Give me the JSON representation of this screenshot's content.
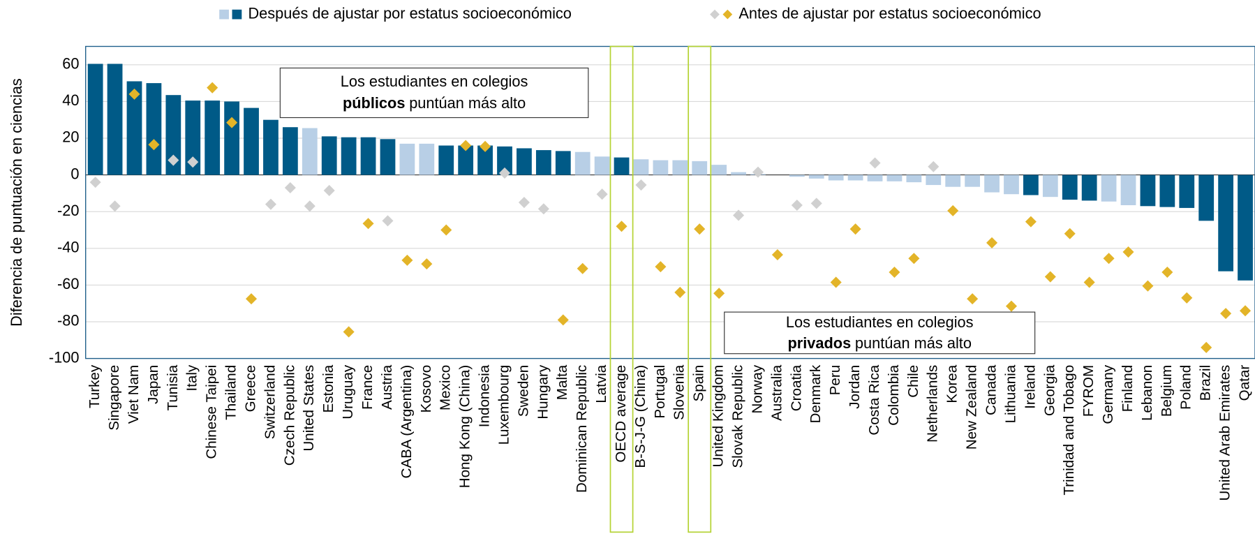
{
  "chart_data": {
    "type": "bar",
    "y_label": "Diferencia de puntuación en ciencias",
    "categories": [
      "Turkey",
      "Singapore",
      "Viet Nam",
      "Japan",
      "Tunisia",
      "Italy",
      "Chinese Taipei",
      "Thailand",
      "Greece",
      "Switzerland",
      "Czech Republic",
      "United States",
      "Estonia",
      "Uruguay",
      "France",
      "Austria",
      "CABA (Argentina)",
      "Kosovo",
      "Mexico",
      "Hong Kong (China)",
      "Indonesia",
      "Luxembourg",
      "Sweden",
      "Hungary",
      "Malta",
      "Dominican Republic",
      "Latvia",
      "OECD average",
      "B-S-J-G (China)",
      "Portugal",
      "Slovenia",
      "Spain",
      "United Kingdom",
      "Slovak Republic",
      "Norway",
      "Australia",
      "Croatia",
      "Denmark",
      "Peru",
      "Jordan",
      "Costa Rica",
      "Colombia",
      "Chile",
      "Netherlands",
      "Korea",
      "New Zealand",
      "Canada",
      "Lithuania",
      "Ireland",
      "Georgia",
      "Trinidad and Tobago",
      "FYROM",
      "Germany",
      "Finland",
      "Lebanon",
      "Belgium",
      "Poland",
      "Brazil",
      "United Arab Emirates",
      "Qatar"
    ],
    "series": [
      {
        "name": "Después de ajustar por estatus socioeconómico",
        "mark": "bar",
        "legend_colors": [
          "#b8cfe6",
          "#005a87"
        ],
        "values": [
          60.5,
          60.5,
          51,
          50,
          43.5,
          40.5,
          40.5,
          40,
          36.5,
          30,
          26,
          25.5,
          21,
          20.5,
          20.5,
          19.5,
          17,
          17,
          16,
          16,
          16,
          15.5,
          14.5,
          13.5,
          13,
          12.5,
          10,
          9.5,
          8.5,
          8,
          8,
          7.5,
          5.5,
          1.5,
          0.5,
          0,
          -1,
          -2,
          -3,
          -3,
          -3.5,
          -3.5,
          -4,
          -5.5,
          -6.5,
          -6.5,
          -9.5,
          -10.5,
          -11,
          -12,
          -13.5,
          -14,
          -14.5,
          -16.5,
          -17,
          -17.5,
          -18,
          -25,
          -52.5,
          -57.5
        ],
        "colors": [
          "#005a87",
          "#005a87",
          "#005a87",
          "#005a87",
          "#005a87",
          "#005a87",
          "#005a87",
          "#005a87",
          "#005a87",
          "#005a87",
          "#005a87",
          "#b8cfe6",
          "#005a87",
          "#005a87",
          "#005a87",
          "#005a87",
          "#b8cfe6",
          "#b8cfe6",
          "#005a87",
          "#005a87",
          "#005a87",
          "#005a87",
          "#005a87",
          "#005a87",
          "#005a87",
          "#b8cfe6",
          "#b8cfe6",
          "#005a87",
          "#b8cfe6",
          "#b8cfe6",
          "#b8cfe6",
          "#b8cfe6",
          "#b8cfe6",
          "#b8cfe6",
          "#b8cfe6",
          "#b8cfe6",
          "#b8cfe6",
          "#b8cfe6",
          "#b8cfe6",
          "#b8cfe6",
          "#b8cfe6",
          "#b8cfe6",
          "#b8cfe6",
          "#b8cfe6",
          "#b8cfe6",
          "#b8cfe6",
          "#b8cfe6",
          "#b8cfe6",
          "#005a87",
          "#b8cfe6",
          "#005a87",
          "#005a87",
          "#b8cfe6",
          "#b8cfe6",
          "#005a87",
          "#005a87",
          "#005a87",
          "#005a87",
          "#005a87",
          "#005a87"
        ]
      },
      {
        "name": "Antes de ajustar por estatus socioeconómico",
        "mark": "diamond",
        "legend_colors": [
          "#d0d0d0",
          "#e3b428"
        ],
        "values": [
          -4,
          -17,
          44,
          16.5,
          8,
          7,
          47.5,
          28.5,
          -67.5,
          -16,
          -7,
          -17,
          -8.5,
          -85.5,
          -26.5,
          -25,
          -46.5,
          -48.5,
          -30,
          16,
          15.5,
          1,
          -15,
          -18.5,
          -79,
          -51,
          -10.5,
          -28,
          -5.5,
          -50,
          -64,
          -29.5,
          -64.5,
          -22,
          1.5,
          -43.5,
          -16.5,
          -15.5,
          -58.5,
          -29.5,
          6.5,
          -53,
          -45.5,
          4.5,
          -19.5,
          -67.5,
          -37,
          -71.5,
          -25.5,
          -55.5,
          -32,
          -58.5,
          -45.5,
          -42,
          -60.5,
          -53,
          -67,
          -94,
          -75.5,
          -74
        ],
        "colors": [
          "#d0d0d0",
          "#d0d0d0",
          "#e3b428",
          "#e3b428",
          "#d0d0d0",
          "#d0d0d0",
          "#e3b428",
          "#e3b428",
          "#e3b428",
          "#d0d0d0",
          "#d0d0d0",
          "#d0d0d0",
          "#d0d0d0",
          "#e3b428",
          "#e3b428",
          "#d0d0d0",
          "#e3b428",
          "#e3b428",
          "#e3b428",
          "#e3b428",
          "#e3b428",
          "#d0d0d0",
          "#d0d0d0",
          "#d0d0d0",
          "#e3b428",
          "#e3b428",
          "#d0d0d0",
          "#e3b428",
          "#d0d0d0",
          "#e3b428",
          "#e3b428",
          "#e3b428",
          "#e3b428",
          "#d0d0d0",
          "#d0d0d0",
          "#e3b428",
          "#d0d0d0",
          "#d0d0d0",
          "#e3b428",
          "#e3b428",
          "#d0d0d0",
          "#e3b428",
          "#e3b428",
          "#d0d0d0",
          "#e3b428",
          "#e3b428",
          "#e3b428",
          "#e3b428",
          "#e3b428",
          "#e3b428",
          "#e3b428",
          "#e3b428",
          "#e3b428",
          "#e3b428",
          "#e3b428",
          "#e3b428",
          "#e3b428",
          "#e3b428",
          "#e3b428",
          "#e3b428"
        ]
      }
    ],
    "ylim": [
      -100,
      70
    ],
    "yticks": [
      -100,
      -80,
      -60,
      -40,
      -20,
      0,
      20,
      40,
      60
    ],
    "grid": true,
    "highlight_indices": [
      27,
      31
    ],
    "highlight_color": "#b5d334",
    "annotations": [
      {
        "line1": "Los estudiantes en colegios",
        "bold": "públicos",
        "rest": "puntúan más alto"
      },
      {
        "line1": "Los estudiantes en colegios",
        "bold": "privados",
        "rest": "puntúan más alto"
      }
    ]
  }
}
